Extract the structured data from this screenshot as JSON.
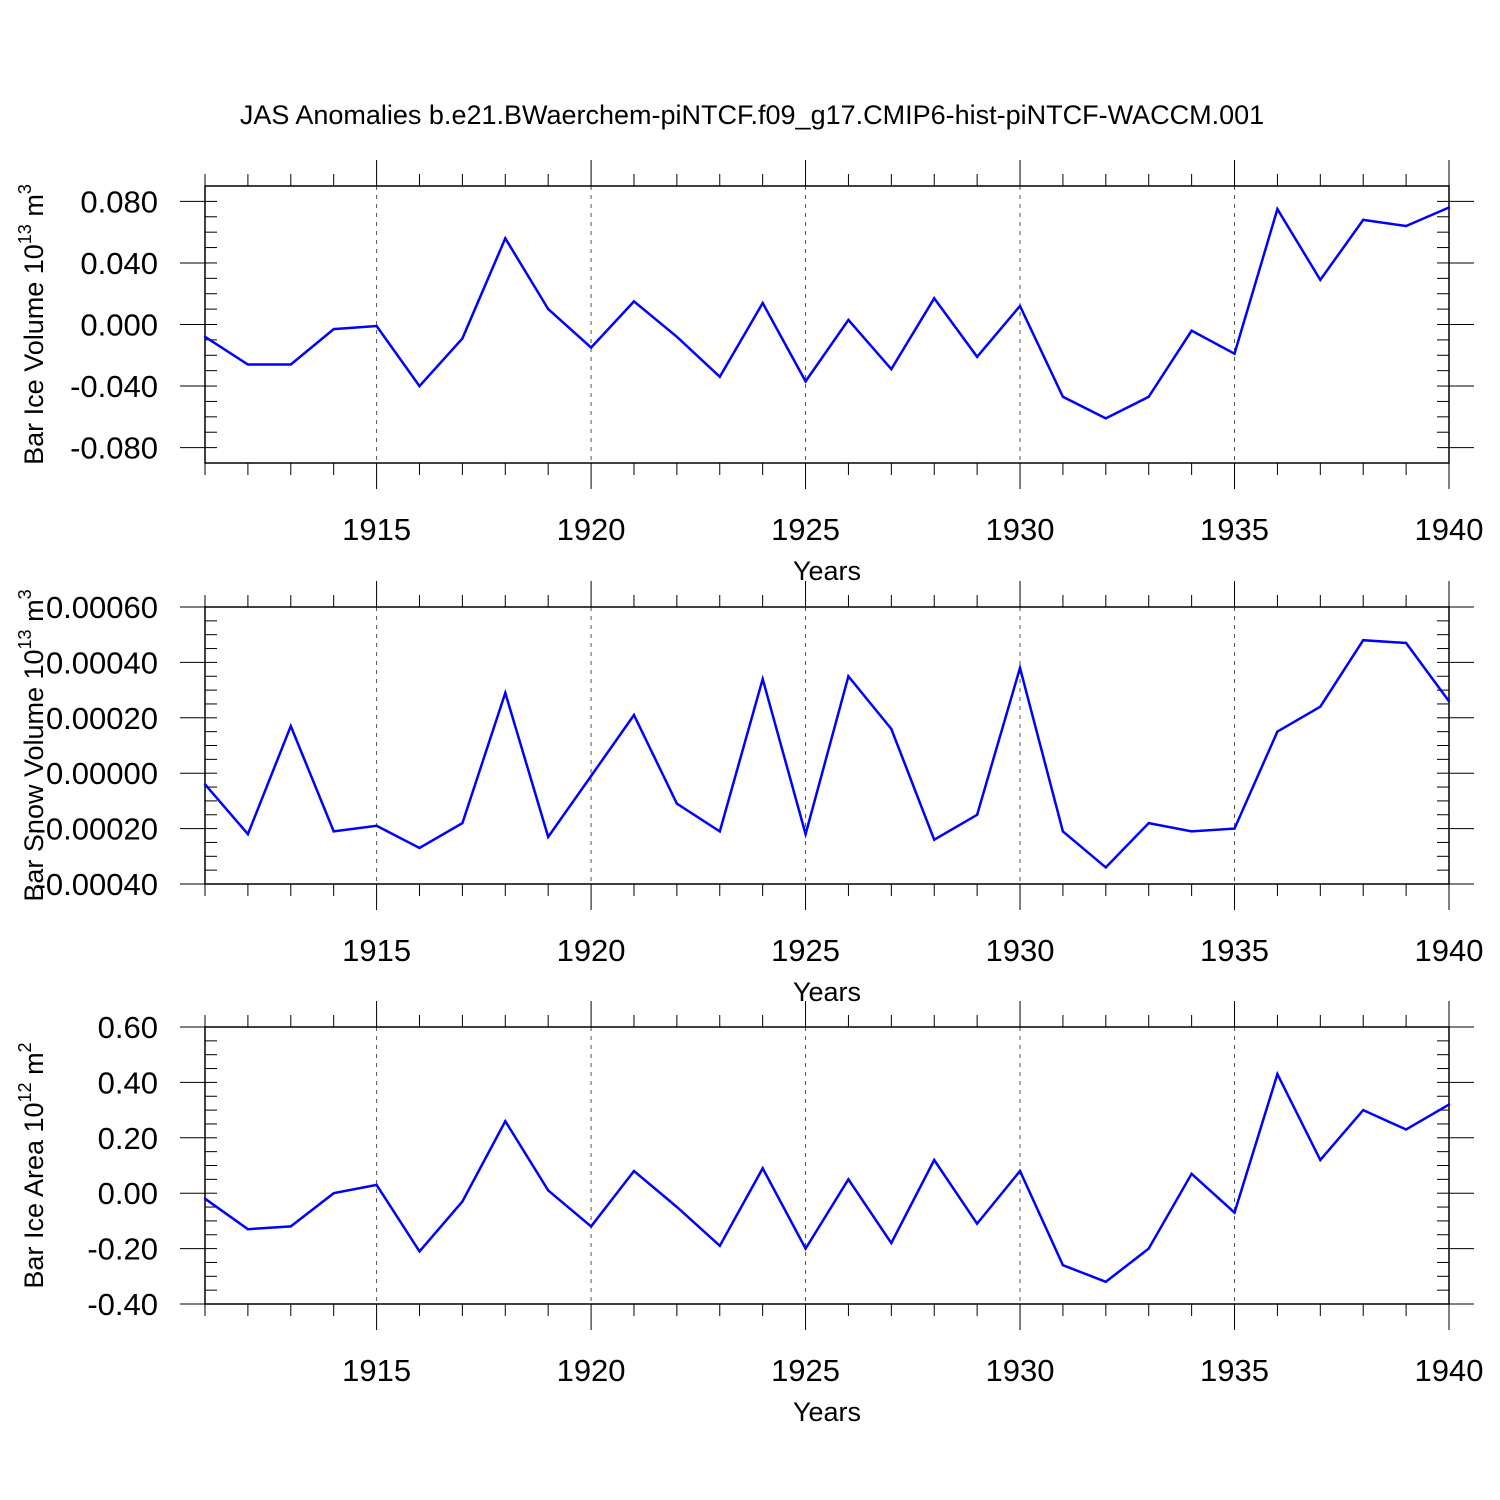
{
  "title": "JAS Anomalies b.e21.BWaerchem-piNTCF.f09_g17.CMIP6-hist-piNTCF-WACCM.001",
  "colors": {
    "line": "#0000ff",
    "axis": "#000000",
    "grid": "#555555"
  },
  "chart_data": [
    {
      "type": "line",
      "ylabel": {
        "base": "Bar Ice Volume 10",
        "exp": "13",
        "unit": " m",
        "unit_exp": "3"
      },
      "xlabel": "Years",
      "xlim": [
        1911,
        1940
      ],
      "ylim": [
        -0.09,
        0.09
      ],
      "yticks": [
        -0.08,
        -0.04,
        0.0,
        0.04,
        0.08
      ],
      "ytick_labels": [
        "-0.080",
        "-0.040",
        "0.000",
        "0.040",
        "0.080"
      ],
      "xticks": [
        1915,
        1920,
        1925,
        1930,
        1935,
        1940
      ],
      "xtick_labels": [
        "1915",
        "1920",
        "1925",
        "1930",
        "1935",
        "1940"
      ],
      "series": [
        {
          "name": "Bar Ice Volume",
          "x": [
            1911,
            1912,
            1913,
            1914,
            1915,
            1916,
            1917,
            1918,
            1919,
            1920,
            1921,
            1922,
            1923,
            1924,
            1925,
            1926,
            1927,
            1928,
            1929,
            1930,
            1931,
            1932,
            1933,
            1934,
            1935,
            1936,
            1937,
            1938,
            1939,
            1940
          ],
          "y": [
            -0.008,
            -0.026,
            -0.026,
            -0.003,
            -0.001,
            -0.04,
            -0.009,
            0.056,
            0.01,
            -0.015,
            0.015,
            -0.008,
            -0.034,
            0.014,
            -0.037,
            0.003,
            -0.029,
            0.017,
            -0.021,
            0.012,
            -0.047,
            -0.061,
            -0.047,
            -0.004,
            -0.019,
            0.075,
            0.029,
            0.068,
            0.064,
            0.076
          ]
        }
      ]
    },
    {
      "type": "line",
      "ylabel": {
        "base": "Bar Snow Volume 10",
        "exp": "13",
        "unit": " m",
        "unit_exp": "3"
      },
      "xlabel": "Years",
      "xlim": [
        1911,
        1940
      ],
      "ylim": [
        -0.0004,
        0.0006
      ],
      "yticks": [
        -0.0004,
        -0.0002,
        0.0,
        0.0002,
        0.0004,
        0.0006
      ],
      "ytick_labels": [
        "-0.00040",
        "-0.00020",
        "0.00000",
        "0.00020",
        "0.00040",
        "0.00060"
      ],
      "xticks": [
        1915,
        1920,
        1925,
        1930,
        1935,
        1940
      ],
      "xtick_labels": [
        "1915",
        "1920",
        "1925",
        "1930",
        "1935",
        "1940"
      ],
      "series": [
        {
          "name": "Bar Snow Volume",
          "x": [
            1911,
            1912,
            1913,
            1914,
            1915,
            1916,
            1917,
            1918,
            1919,
            1920,
            1921,
            1922,
            1923,
            1924,
            1925,
            1926,
            1927,
            1928,
            1929,
            1930,
            1931,
            1932,
            1933,
            1934,
            1935,
            1936,
            1937,
            1938,
            1939,
            1940
          ],
          "y": [
            -4e-05,
            -0.00022,
            0.00017,
            -0.00021,
            -0.00019,
            -0.00027,
            -0.00018,
            0.00029,
            -0.00023,
            -1e-05,
            0.00021,
            -0.00011,
            -0.00021,
            0.00034,
            -0.00022,
            0.00035,
            0.00016,
            -0.00024,
            -0.00015,
            0.00038,
            -0.00021,
            -0.00034,
            -0.00018,
            -0.00021,
            -0.0002,
            0.00015,
            0.00024,
            0.00048,
            0.00047,
            0.00026
          ]
        }
      ]
    },
    {
      "type": "line",
      "ylabel": {
        "base": "Bar Ice Area 10",
        "exp": "12",
        "unit": " m",
        "unit_exp": "2"
      },
      "xlabel": "Years",
      "xlim": [
        1911,
        1940
      ],
      "ylim": [
        -0.4,
        0.6
      ],
      "yticks": [
        -0.4,
        -0.2,
        0.0,
        0.2,
        0.4,
        0.6
      ],
      "ytick_labels": [
        "-0.40",
        "-0.20",
        "0.00",
        "0.20",
        "0.40",
        "0.60"
      ],
      "xticks": [
        1915,
        1920,
        1925,
        1930,
        1935,
        1940
      ],
      "xtick_labels": [
        "1915",
        "1920",
        "1925",
        "1930",
        "1935",
        "1940"
      ],
      "series": [
        {
          "name": "Bar Ice Area",
          "x": [
            1911,
            1912,
            1913,
            1914,
            1915,
            1916,
            1917,
            1918,
            1919,
            1920,
            1921,
            1922,
            1923,
            1924,
            1925,
            1926,
            1927,
            1928,
            1929,
            1930,
            1931,
            1932,
            1933,
            1934,
            1935,
            1936,
            1937,
            1938,
            1939,
            1940
          ],
          "y": [
            -0.02,
            -0.13,
            -0.12,
            0.0,
            0.03,
            -0.21,
            -0.03,
            0.26,
            0.01,
            -0.12,
            0.08,
            -0.05,
            -0.19,
            0.09,
            -0.2,
            0.05,
            -0.18,
            0.12,
            -0.11,
            0.08,
            -0.26,
            -0.32,
            -0.2,
            0.07,
            -0.07,
            0.43,
            0.12,
            0.3,
            0.23,
            0.32
          ]
        }
      ]
    }
  ]
}
